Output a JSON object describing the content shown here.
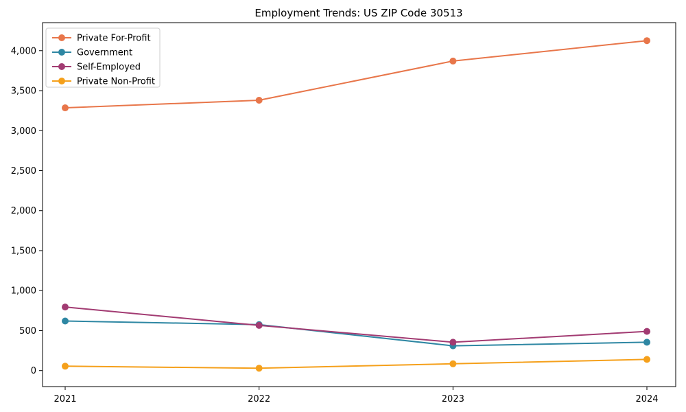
{
  "figure": {
    "background": "#ffffff",
    "axis_color": "#000000",
    "legend_border_color": "#cccccc",
    "legend_background": "#ffffff"
  },
  "chart_data": {
    "type": "line",
    "title": "Employment Trends: US ZIP Code 30513",
    "xlabel": "",
    "ylabel": "",
    "categories": [
      2021,
      2022,
      2023,
      2024
    ],
    "x_tick_labels": [
      "2021",
      "2022",
      "2023",
      "2024"
    ],
    "series": [
      {
        "name": "Private For-Profit",
        "color": "#E8764A",
        "values": [
          3285,
          3380,
          3870,
          4125
        ]
      },
      {
        "name": "Government",
        "color": "#2E87A3",
        "values": [
          620,
          575,
          310,
          355
        ]
      },
      {
        "name": "Self-Employed",
        "color": "#A23B72",
        "values": [
          795,
          565,
          355,
          490
        ]
      },
      {
        "name": "Private Non-Profit",
        "color": "#F5A01B",
        "values": [
          55,
          30,
          85,
          140
        ]
      }
    ],
    "y_ticks": [
      0,
      500,
      1000,
      1500,
      2000,
      2500,
      3000,
      3500,
      4000
    ],
    "y_tick_labels": [
      "0",
      "500",
      "1,000",
      "1,500",
      "2,000",
      "2,500",
      "3,000",
      "3,500",
      "4,000"
    ],
    "ylim": [
      -200,
      4350
    ],
    "grid": "off",
    "legend_position": "upper-left",
    "marker": "circle"
  }
}
